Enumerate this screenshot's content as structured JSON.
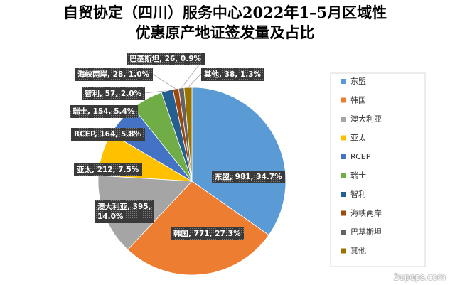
{
  "chart_data": {
    "type": "pie",
    "title_line1": "自贸协定（四川）服务中心2022年1–5月区域性",
    "title_line2": "优惠原产地证签发量及占比",
    "categories": [
      "东盟",
      "韩国",
      "澳大利亚",
      "亚太",
      "RCEP",
      "瑞士",
      "智利",
      "海峡两岸",
      "巴基斯坦",
      "其他"
    ],
    "values": [
      981,
      771,
      395,
      212,
      164,
      154,
      57,
      28,
      26,
      38
    ],
    "percents": [
      "34.7%",
      "27.3%",
      "14.0%",
      "7.5%",
      "5.8%",
      "5.4%",
      "2.0%",
      "1.0%",
      "0.9%",
      "1.3%"
    ],
    "labels": [
      "东盟, 981, 34.7%",
      "韩国, 771, 27.3%",
      [
        "澳大利亚, 395,",
        "14.0%"
      ],
      "亚太, 212, 7.5%",
      "RCEP, 164, 5.8%",
      "瑞士, 154, 5.4%",
      "智利, 57, 2.0%",
      "海峡两岸, 28, 1.0%",
      "巴基斯坦, 26, 0.9%",
      "其他, 38, 1.3%"
    ],
    "colors": [
      "#5B9BD5",
      "#ED7D31",
      "#A5A5A5",
      "#FFC000",
      "#4472C4",
      "#70AD47",
      "#255E91",
      "#9E480E",
      "#636363",
      "#997300"
    ],
    "legend_position": "right"
  },
  "watermark": "2upops.com"
}
